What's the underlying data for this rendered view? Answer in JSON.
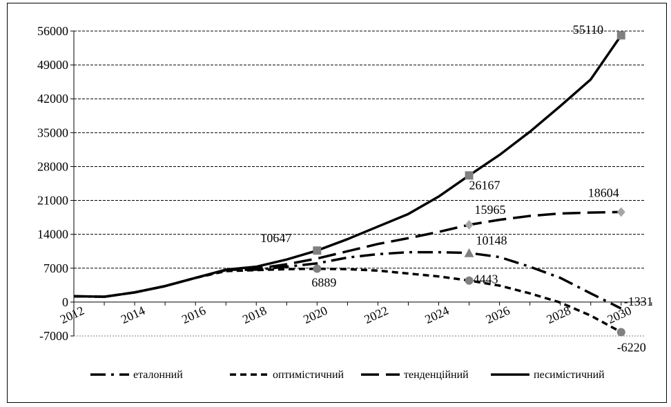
{
  "chart_data": {
    "type": "line",
    "title": "",
    "xlabel": "",
    "ylabel": "",
    "xlim": [
      2012,
      2030.8
    ],
    "ylim": [
      -7000,
      56000
    ],
    "yticks": [
      -7000,
      0,
      7000,
      14000,
      21000,
      28000,
      35000,
      42000,
      49000,
      56000
    ],
    "ytick_labels": [
      "-7000",
      "0",
      "7000",
      "14000",
      "21000",
      "28000",
      "35000",
      "42000",
      "49000",
      "56000"
    ],
    "xticks": [
      2012,
      2014,
      2016,
      2018,
      2020,
      2022,
      2024,
      2026,
      2028,
      2030
    ],
    "xtick_labels": [
      "2012",
      "2014",
      "2016",
      "2018",
      "2020",
      "2022",
      "2024",
      "2026",
      "2028",
      "2030"
    ],
    "grid": "horizontal dashed",
    "legend_position": "bottom",
    "series": [
      {
        "name": "еталонний",
        "style": "dash-dot",
        "color": "#000000",
        "marker": "triangle",
        "marker_color": "#808080",
        "x": [
          2012,
          2013,
          2014,
          2015,
          2016,
          2017,
          2018,
          2019,
          2020,
          2021,
          2022,
          2023,
          2024,
          2025,
          2026,
          2027,
          2028,
          2029,
          2030
        ],
        "y": [
          1200,
          1100,
          2000,
          3300,
          5000,
          6600,
          6700,
          7300,
          8000,
          9200,
          9900,
          10300,
          10300,
          10148,
          9300,
          7300,
          5000,
          1800,
          -1331
        ],
        "markers": [
          {
            "x": 2025,
            "y": 10148,
            "label": "10148"
          }
        ],
        "end_label": "-1331"
      },
      {
        "name": "оптимістичний",
        "style": "short-dash",
        "color": "#000000",
        "marker": "circle",
        "marker_color": "#808080",
        "x": [
          2012,
          2013,
          2014,
          2015,
          2016,
          2017,
          2018,
          2019,
          2020,
          2021,
          2022,
          2023,
          2024,
          2025,
          2026,
          2027,
          2028,
          2029,
          2030
        ],
        "y": [
          1200,
          1100,
          2000,
          3300,
          5000,
          6400,
          6600,
          6800,
          6889,
          6800,
          6500,
          5900,
          5300,
          4443,
          3400,
          1800,
          -100,
          -2800,
          -6220
        ],
        "markers": [
          {
            "x": 2020,
            "y": 6889,
            "label": "6889"
          },
          {
            "x": 2025,
            "y": 4443,
            "label": "4443"
          },
          {
            "x": 2030,
            "y": -6220,
            "label": "-6220"
          }
        ]
      },
      {
        "name": "тенденційний",
        "style": "long-dash",
        "color": "#000000",
        "marker": "diamond",
        "marker_color": "#a6a6a6",
        "x": [
          2012,
          2013,
          2014,
          2015,
          2016,
          2017,
          2018,
          2019,
          2020,
          2021,
          2022,
          2023,
          2024,
          2025,
          2026,
          2027,
          2028,
          2029,
          2030
        ],
        "y": [
          1200,
          1100,
          2000,
          3300,
          5000,
          6600,
          6900,
          7800,
          9000,
          10500,
          12000,
          13200,
          14500,
          15965,
          17000,
          17800,
          18300,
          18500,
          18604
        ],
        "markers": [
          {
            "x": 2025,
            "y": 15965,
            "label": "15965"
          },
          {
            "x": 2030,
            "y": 18604,
            "label": "18604"
          }
        ]
      },
      {
        "name": "песимістичний",
        "style": "solid",
        "color": "#000000",
        "marker": "square",
        "marker_color": "#808080",
        "x": [
          2012,
          2013,
          2014,
          2015,
          2016,
          2017,
          2018,
          2019,
          2020,
          2021,
          2022,
          2023,
          2024,
          2025,
          2026,
          2027,
          2028,
          2029,
          2030
        ],
        "y": [
          1200,
          1100,
          2000,
          3300,
          5000,
          6700,
          7300,
          8800,
          10647,
          13000,
          15600,
          18200,
          21800,
          26167,
          30400,
          35200,
          40500,
          46000,
          55110
        ],
        "markers": [
          {
            "x": 2020,
            "y": 10647,
            "label": "10647"
          },
          {
            "x": 2025,
            "y": 26167,
            "label": "26167"
          },
          {
            "x": 2030,
            "y": 55110,
            "label": "55110"
          }
        ]
      }
    ]
  }
}
